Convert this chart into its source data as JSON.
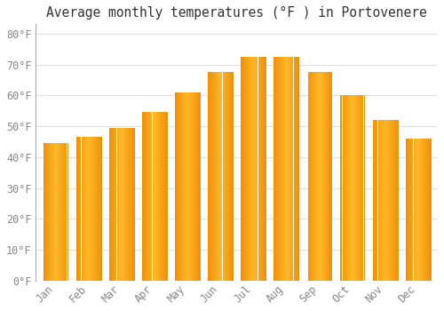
{
  "title": "Average monthly temperatures (°F ) in Portovenere",
  "months": [
    "Jan",
    "Feb",
    "Mar",
    "Apr",
    "May",
    "Jun",
    "Jul",
    "Aug",
    "Sep",
    "Oct",
    "Nov",
    "Dec"
  ],
  "values": [
    44.5,
    46.5,
    49.5,
    54.5,
    61,
    67.5,
    72.5,
    72.5,
    67.5,
    60,
    52,
    46
  ],
  "bar_color_center": "#FDB827",
  "bar_color_edge": "#F0900A",
  "background_color": "#FFFFFF",
  "grid_color": "#E0E0E0",
  "ylim": [
    0,
    83
  ],
  "yticks": [
    0,
    10,
    20,
    30,
    40,
    50,
    60,
    70,
    80
  ],
  "title_fontsize": 10.5,
  "tick_fontsize": 8.5,
  "tick_color": "#888888",
  "bar_width": 0.75,
  "spine_color": "#AAAAAA"
}
